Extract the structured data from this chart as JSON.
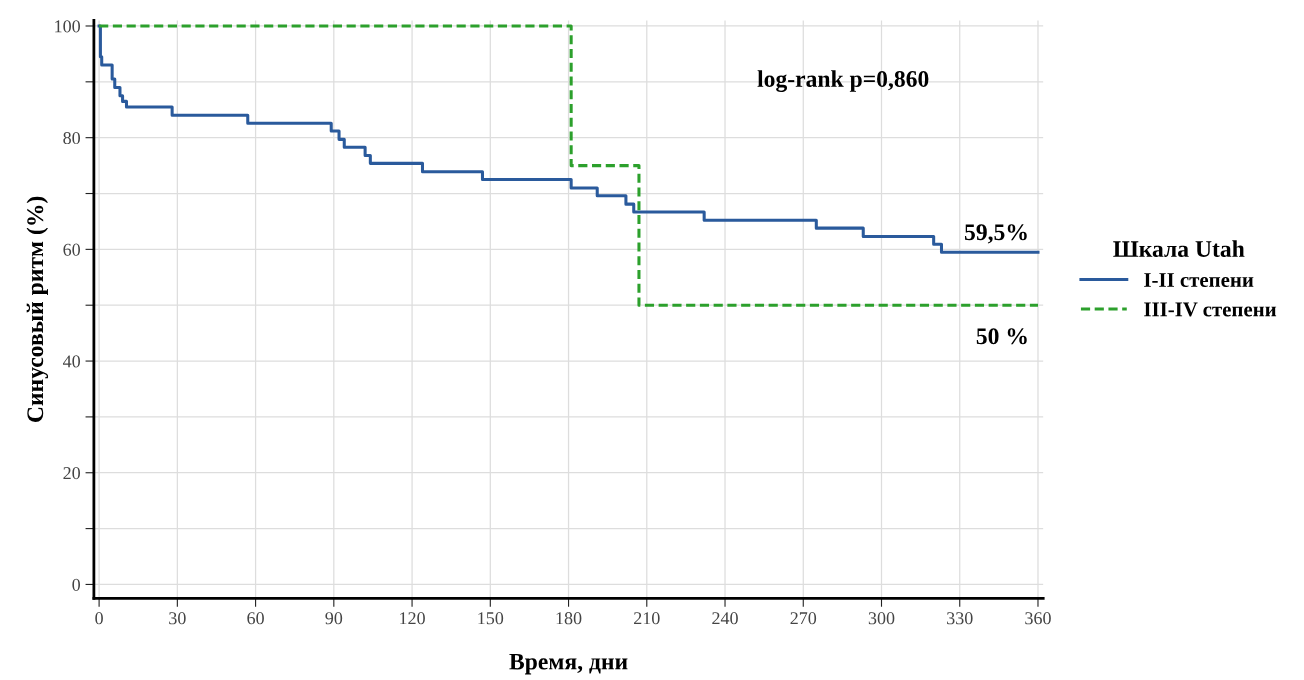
{
  "chart_data": {
    "type": "step",
    "xlabel": "Время, дни",
    "ylabel": "Синусовый ритм (%)",
    "legend_title": "Шкала Utah",
    "series": [
      {
        "name": "I-II степени",
        "color": "#2a5a9c",
        "line_style": "solid",
        "x": [
          0,
          0.5,
          1,
          5,
          6,
          8,
          9,
          10.5,
          28,
          57,
          89,
          92,
          94,
          102,
          104,
          124,
          147,
          181,
          191,
          202,
          205,
          232,
          275,
          293,
          320,
          323,
          360
        ],
        "values": [
          100,
          94.5,
          93,
          90.5,
          89,
          87.5,
          86.5,
          85.5,
          84,
          82.6,
          81.2,
          79.7,
          78.3,
          76.8,
          75.4,
          73.9,
          72.5,
          71,
          69.6,
          68.1,
          66.7,
          65.2,
          63.8,
          62.3,
          60.9,
          59.5,
          59.5
        ]
      },
      {
        "name": "III-IV степени",
        "color": "#2ca02c",
        "line_style": "dashed",
        "x": [
          0,
          181,
          207,
          360
        ],
        "values": [
          100,
          75,
          50,
          50
        ]
      }
    ],
    "annotations": [
      "log-rank p=0,860",
      "59,5%",
      "50 %"
    ],
    "xlim": [
      -2,
      362
    ],
    "ylim": [
      -2.5,
      101
    ],
    "xticks": [
      0,
      30,
      60,
      90,
      120,
      150,
      180,
      210,
      240,
      270,
      300,
      330,
      360
    ],
    "yticks": [
      0,
      {
        "value": 10,
        "label": null
      },
      20,
      {
        "value": 30,
        "label": null
      },
      40,
      {
        "value": 50,
        "label": null
      },
      60,
      {
        "value": 70,
        "label": null
      },
      80,
      {
        "value": 90,
        "label": null
      },
      100
    ],
    "grid": true,
    "legend": "right",
    "marker": "none"
  }
}
